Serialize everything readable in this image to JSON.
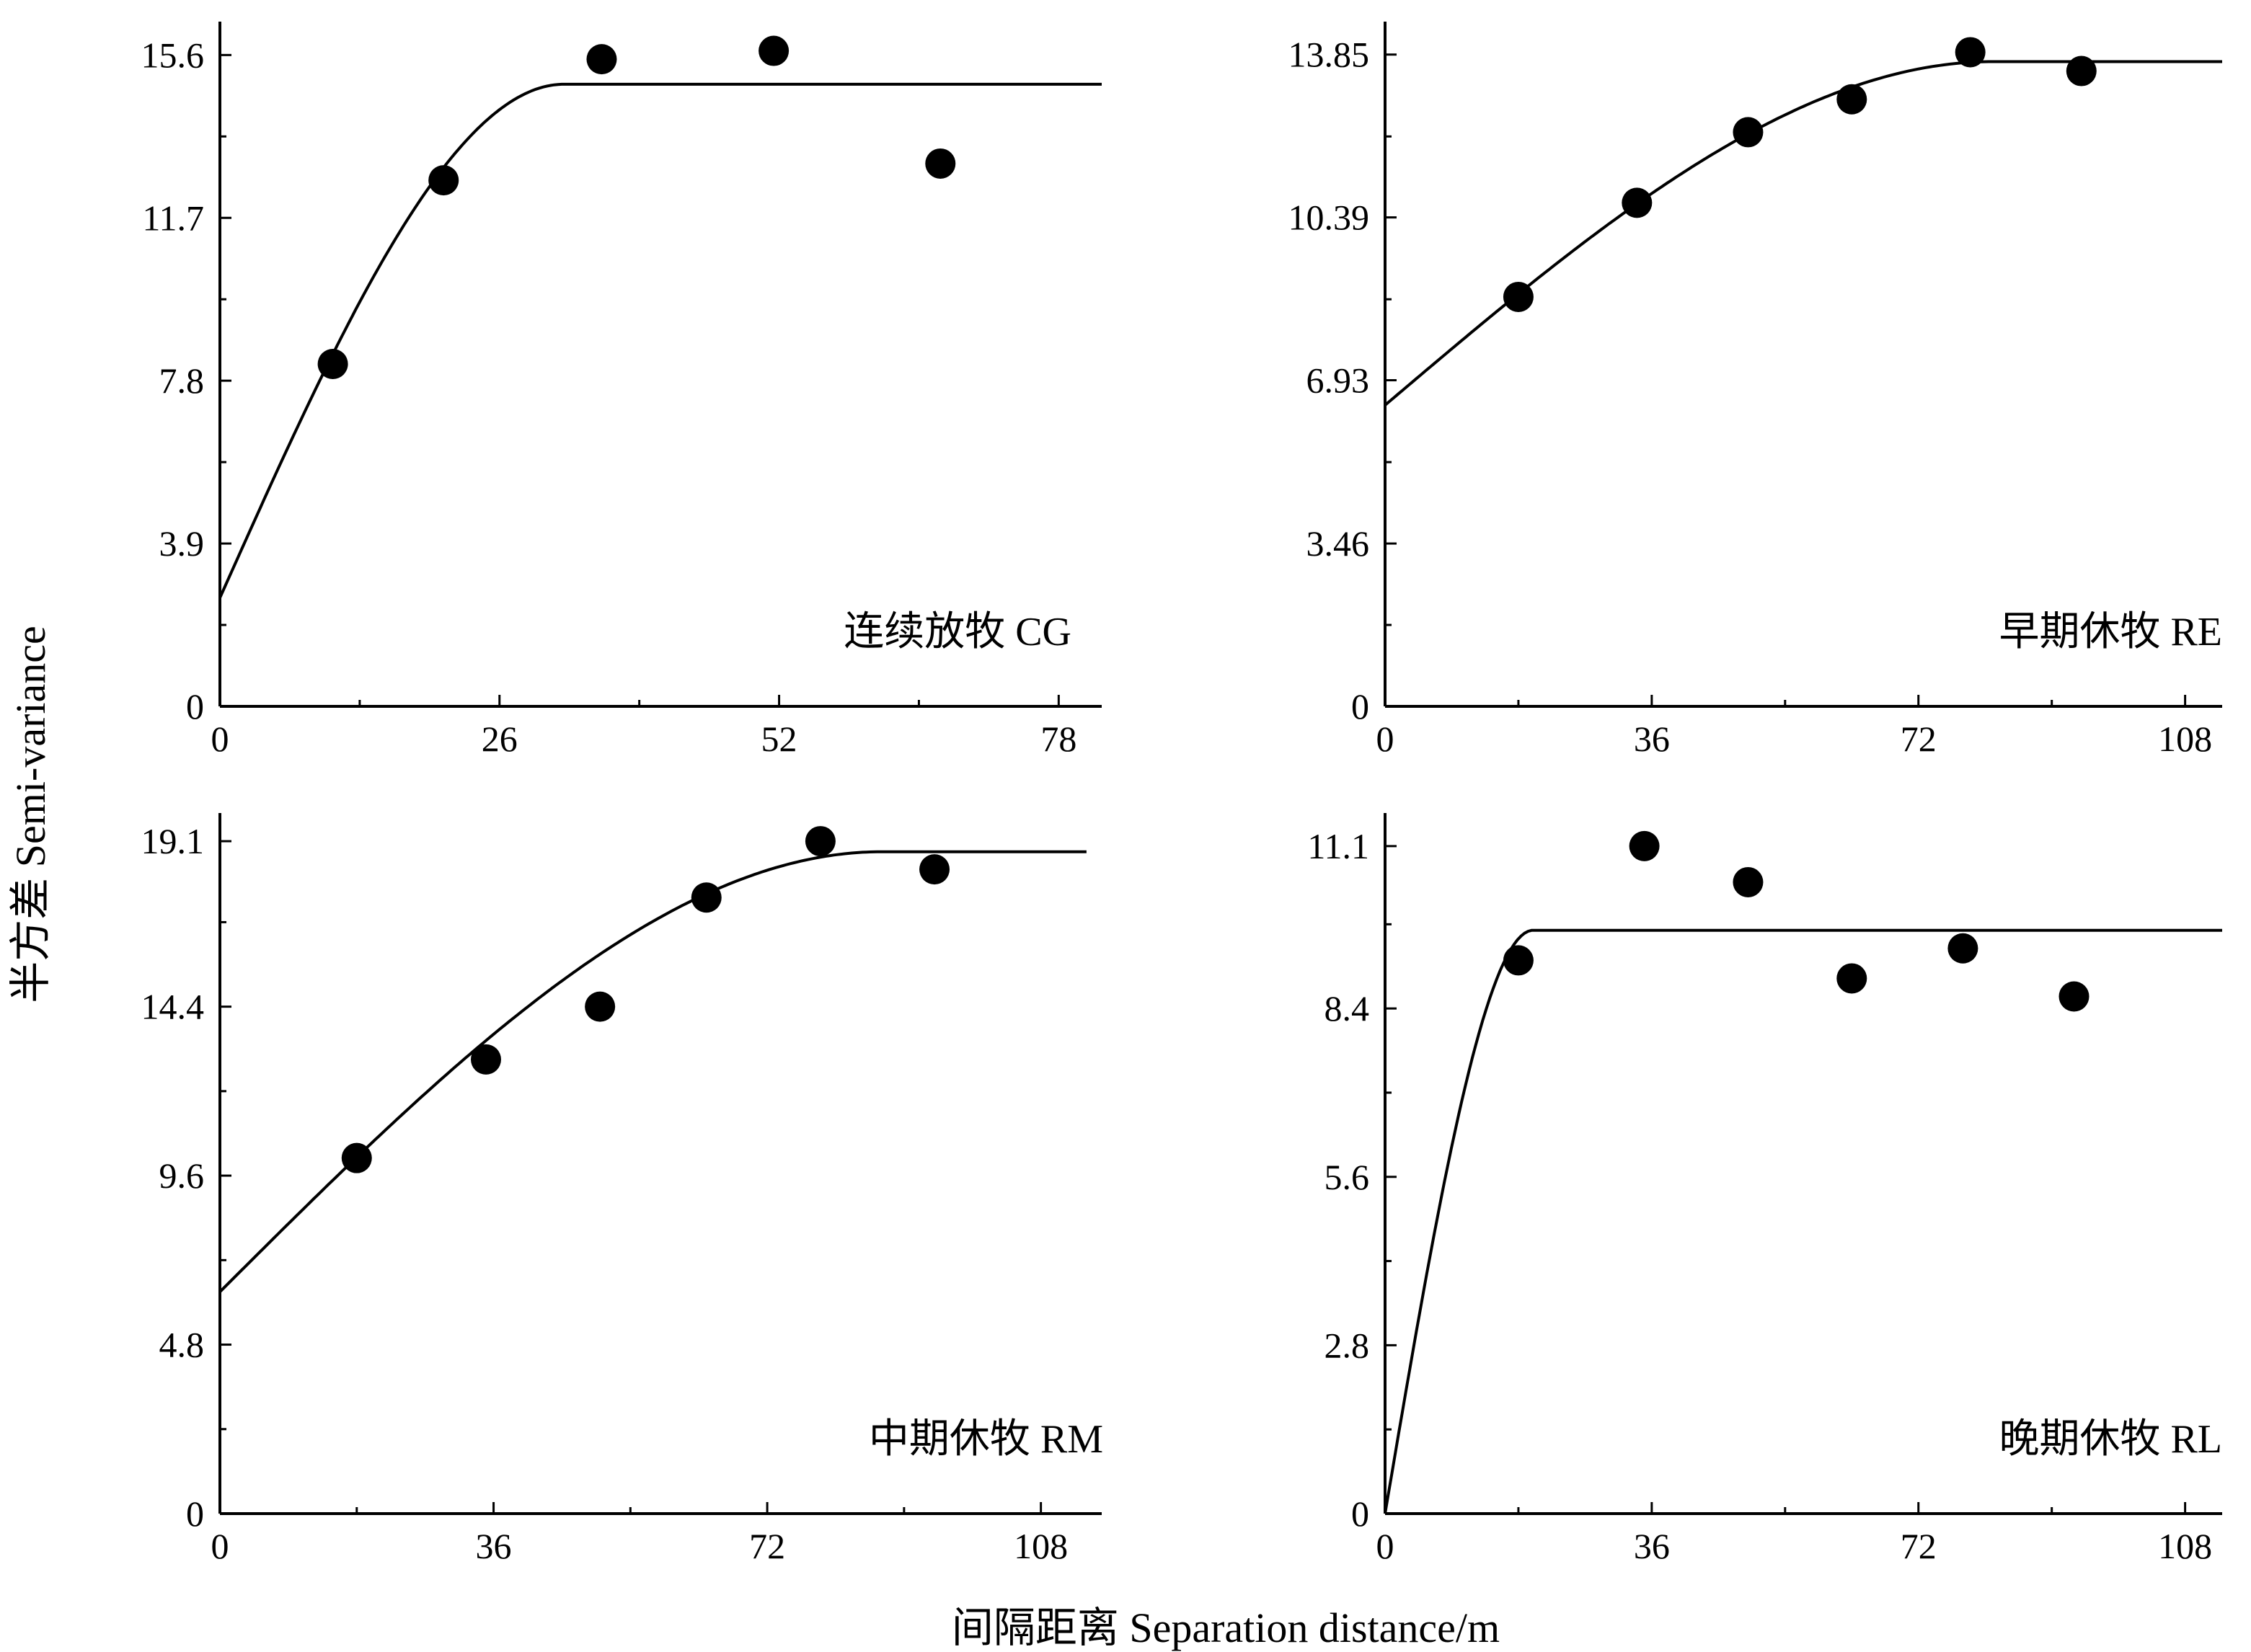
{
  "figure": {
    "ylabel": "半方差 Semi-variance",
    "xlabel": "间隔距离 Separation distance/m"
  },
  "chart_data": [
    {
      "type": "scatter",
      "panel_label": "连续放牧 CG",
      "xlim": [
        0,
        82
      ],
      "ylim": [
        0,
        16.4
      ],
      "xticks": [
        "0",
        "26",
        "52",
        "78"
      ],
      "yticks": [
        "0",
        "3.9",
        "7.8",
        "11.7",
        "15.6"
      ],
      "points": {
        "x": [
          10.5,
          20.8,
          35.5,
          51.5,
          67
        ],
        "y": [
          8.2,
          12.6,
          15.5,
          15.7,
          13.0
        ]
      },
      "model": {
        "type": "spherical",
        "nugget": 2.6,
        "sill": 14.9,
        "range": 32,
        "xmax": 82
      }
    },
    {
      "type": "scatter",
      "panel_label": "早期休牧 RE",
      "xlim": [
        0,
        113
      ],
      "ylim": [
        0,
        14.55
      ],
      "xticks": [
        "0",
        "36",
        "72",
        "108"
      ],
      "yticks": [
        "0",
        "3.46",
        "6.93",
        "10.39",
        "13.85"
      ],
      "points": {
        "x": [
          18,
          34,
          49,
          63,
          79,
          94
        ],
        "y": [
          8.7,
          10.7,
          12.2,
          12.9,
          13.9,
          13.5
        ]
      },
      "model": {
        "type": "spherical",
        "nugget": 6.4,
        "sill": 13.7,
        "range": 82,
        "xmax": 113
      }
    },
    {
      "type": "scatter",
      "panel_label": "中期休牧 RM",
      "xlim": [
        0,
        116
      ],
      "ylim": [
        0,
        19.9
      ],
      "xticks": [
        "0",
        "36",
        "72",
        "108"
      ],
      "yticks": [
        "0",
        "4.8",
        "9.6",
        "14.4",
        "19.1"
      ],
      "points": {
        "x": [
          18,
          35,
          50,
          64,
          79,
          94
        ],
        "y": [
          10.1,
          12.9,
          14.4,
          17.5,
          19.1,
          18.3
        ]
      },
      "model": {
        "type": "spherical",
        "nugget": 6.3,
        "sill": 18.8,
        "range": 87,
        "xmax": 114
      }
    },
    {
      "type": "scatter",
      "panel_label": "晚期休牧 RL",
      "xlim": [
        0,
        113
      ],
      "ylim": [
        0,
        11.65
      ],
      "xticks": [
        "0",
        "36",
        "72",
        "108"
      ],
      "yticks": [
        "0",
        "2.8",
        "5.6",
        "8.4",
        "11.1"
      ],
      "points": {
        "x": [
          18,
          35,
          49,
          63,
          78,
          93
        ],
        "y": [
          9.2,
          11.1,
          10.5,
          8.9,
          9.4,
          8.6
        ]
      },
      "model": {
        "type": "spherical",
        "nugget": 0,
        "sill": 9.7,
        "range": 20,
        "xmax": 113
      }
    }
  ]
}
